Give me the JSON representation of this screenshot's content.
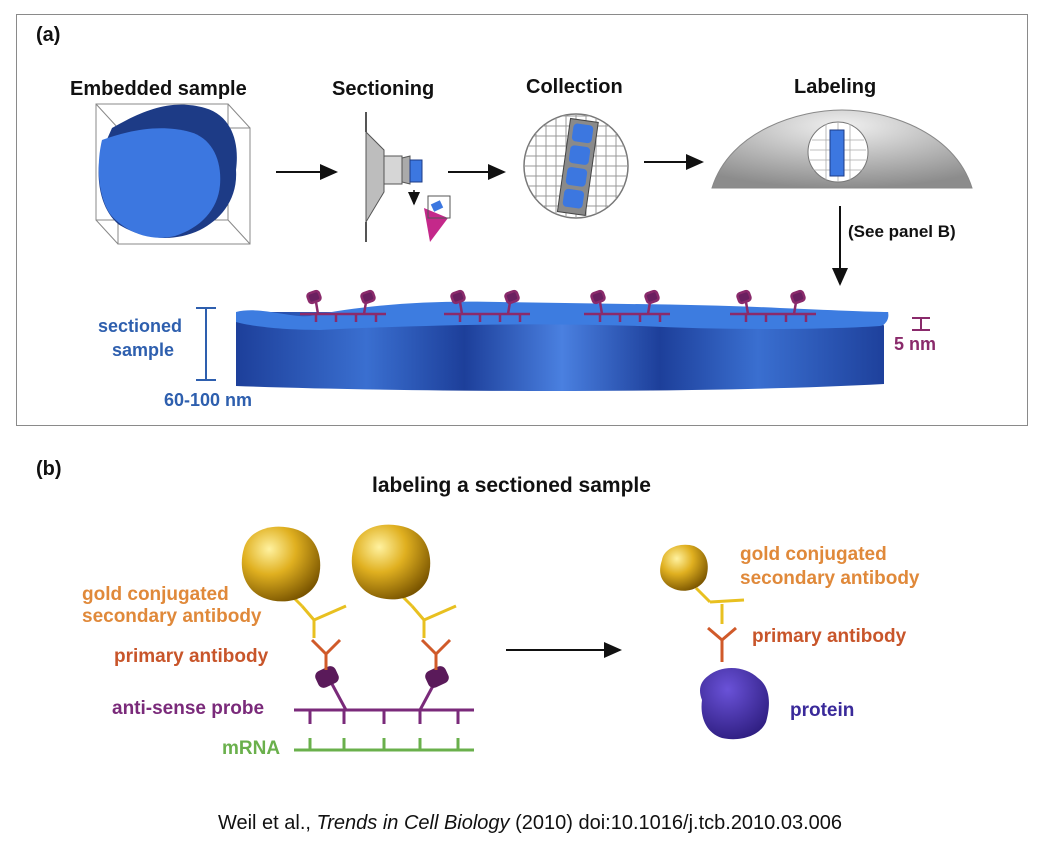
{
  "panel_a": {
    "label": "(a)",
    "steps": {
      "embedded": "Embedded sample",
      "sectioning": "Sectioning",
      "collection": "Collection",
      "labeling": "Labeling"
    },
    "see_panel": "(See panel B)",
    "sectioned_sample_line1": "sectioned",
    "sectioned_sample_line2": "sample",
    "thickness": "60-100 nm",
    "label_size": "5 nm"
  },
  "panel_b": {
    "label": "(b)",
    "title": "labeling a sectioned sample",
    "left": {
      "secondary_line1": "gold conjugated",
      "secondary_line2": "secondary antibody",
      "primary": "primary antibody",
      "probe": "anti-sense probe",
      "mrna": "mRNA"
    },
    "right": {
      "secondary_line1": "gold conjugated",
      "secondary_line2": "secondary antibody",
      "primary": "primary antibody",
      "protein": "protein"
    }
  },
  "caption": {
    "authors": "Weil et al.,",
    "journal": "Trends in Cell Biology",
    "rest": "(2010) doi:10.1016/j.tcb.2010.03.006"
  },
  "colors": {
    "sample_blue": "#2f6fd6",
    "gold": "#d4a020",
    "antibody_yellow": "#e8c020",
    "antibody_red": "#d05a2a",
    "probe_purple": "#7a2a7a",
    "mrna_green": "#6ab04c",
    "protein_indigo": "#3a2a9a",
    "panel_b_bg": "#c4dcf4"
  }
}
